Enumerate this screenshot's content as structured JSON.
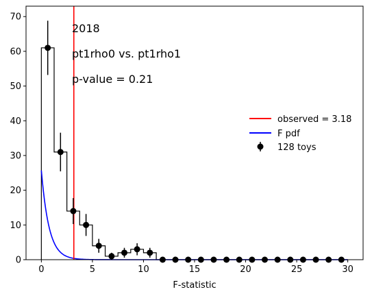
{
  "chart_data": {
    "type": "histogram",
    "xlabel": "F-statistic",
    "ylabel": "",
    "xlim": [
      -1.5,
      31.5
    ],
    "ylim": [
      0,
      73
    ],
    "xticks": [
      0,
      5,
      10,
      15,
      20,
      25,
      30
    ],
    "yticks": [
      0,
      10,
      20,
      30,
      40,
      50,
      60,
      70
    ],
    "grid": false,
    "annotations": [
      "2018",
      "pt1rho0 vs. pt1rho1",
      "p-value = 0.21"
    ],
    "bin_edges": [
      0,
      1.25,
      2.5,
      3.75,
      5,
      6.25,
      7.5,
      8.75,
      10,
      11.25,
      12.5,
      13.75,
      15,
      16.25,
      17.5,
      18.75,
      20,
      21.25,
      22.5,
      23.75,
      25,
      26.25,
      27.5,
      28.75,
      30
    ],
    "toys": {
      "name": "128 toys",
      "x": [
        0.625,
        1.875,
        3.125,
        4.375,
        5.625,
        6.875,
        8.125,
        9.375,
        10.625,
        11.875,
        13.125,
        14.375,
        15.625,
        16.875,
        18.125,
        19.375,
        20.625,
        21.875,
        23.125,
        24.375,
        25.625,
        26.875,
        28.125,
        29.375
      ],
      "values": [
        61,
        31,
        14,
        10,
        4,
        1,
        2,
        3,
        2,
        0,
        0,
        0,
        0,
        0,
        0,
        0,
        0,
        0,
        0,
        0,
        0,
        0,
        0,
        0
      ],
      "color": "#000000"
    },
    "observed": {
      "name": "observed = 3.18",
      "x": 3.18,
      "color": "#ff0000"
    },
    "f_pdf": {
      "name": "F pdf",
      "color": "#0000ff",
      "x0_value": 25.7,
      "decay": 1.33
    },
    "legend_position": "center-right"
  }
}
